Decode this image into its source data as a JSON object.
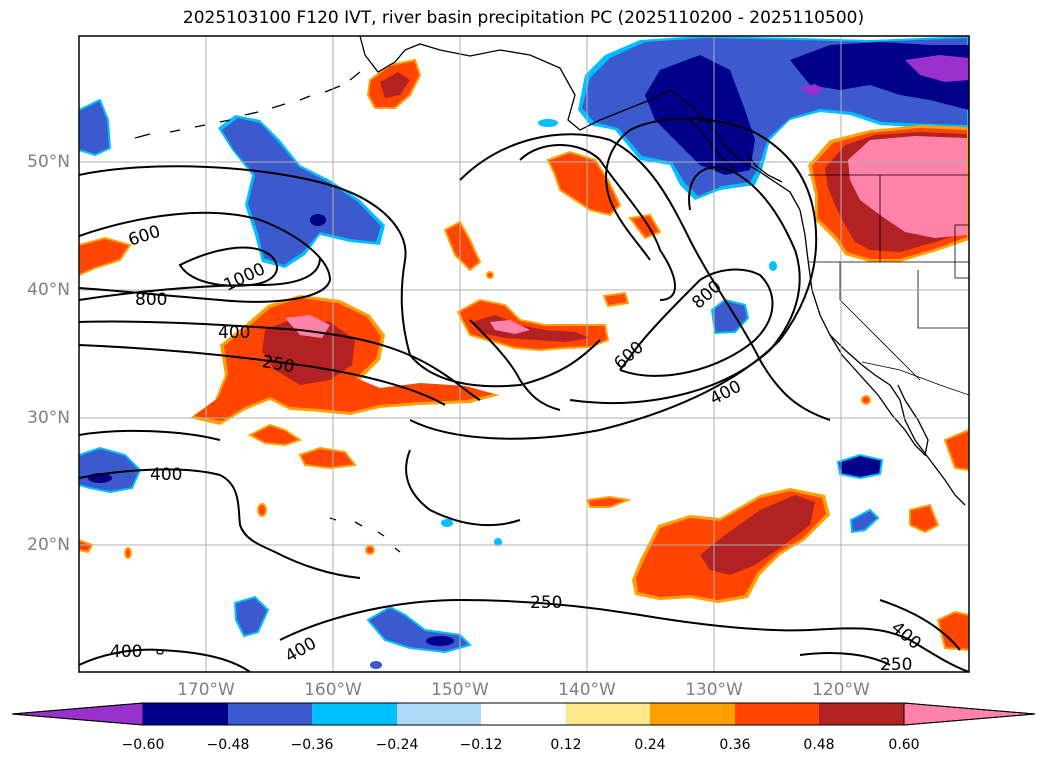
{
  "title": "2025103100 F120 IVT, river basin precipitation PC (2025110200 - 2025110500)",
  "map": {
    "lat_labels": [
      "50°N",
      "40°N",
      "30°N",
      "20°N"
    ],
    "lon_labels": [
      "170°W",
      "160°W",
      "150°W",
      "140°W",
      "130°W",
      "120°W"
    ],
    "contour_labels": [
      "600",
      "1000",
      "800",
      "400",
      "250",
      "800",
      "600",
      "400",
      "400",
      "250",
      "400",
      "400",
      "400",
      "250"
    ],
    "colors": {
      "purple": "#9932cc",
      "navy": "#00008b",
      "royal": "#3a5acd",
      "sky": "#00bfff",
      "pale_blue": "#add8f6",
      "yellow": "#ffe88a",
      "orange": "#ffa000",
      "red_orange": "#ff4500",
      "brick": "#b22222",
      "pink": "#ff82ab"
    }
  },
  "colorbar": {
    "ticks": [
      "−0.60",
      "−0.48",
      "−0.36",
      "−0.24",
      "−0.12",
      "0.12",
      "0.24",
      "0.36",
      "0.48",
      "0.60"
    ],
    "colors": [
      "#9932cc",
      "#00008b",
      "#3a5acd",
      "#00bfff",
      "#add8f6",
      "#ffffff",
      "#ffe88a",
      "#ffa000",
      "#ff4500",
      "#b22222",
      "#ff82ab"
    ]
  }
}
